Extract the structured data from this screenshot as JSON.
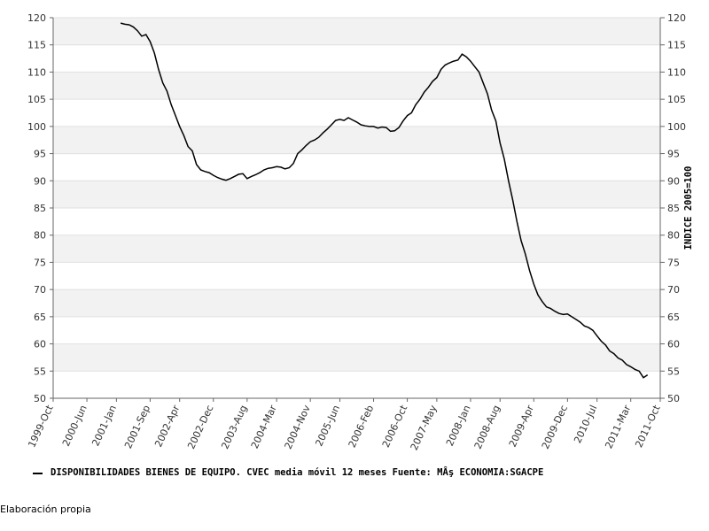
{
  "chart_data": {
    "type": "line",
    "y2_label": "INDICE 2005=100",
    "footnote": "Elaboración propia",
    "categories": [
      "1999-Oct",
      null,
      null,
      null,
      null,
      null,
      null,
      null,
      "2000-Jun",
      null,
      null,
      null,
      null,
      null,
      null,
      "2001-Jan",
      null,
      null,
      null,
      null,
      null,
      null,
      null,
      "2001-Sep",
      null,
      null,
      null,
      null,
      null,
      null,
      "2002-Apr",
      null,
      null,
      null,
      null,
      null,
      null,
      null,
      "2002-Dec",
      null,
      null,
      null,
      null,
      null,
      null,
      null,
      "2003-Aug",
      null,
      null,
      null,
      null,
      null,
      null,
      "2004-Mar",
      null,
      null,
      null,
      null,
      null,
      null,
      null,
      "2004-Nov",
      null,
      null,
      null,
      null,
      null,
      null,
      "2005-Jun",
      null,
      null,
      null,
      null,
      null,
      null,
      null,
      "2006-Feb",
      null,
      null,
      null,
      null,
      null,
      null,
      null,
      "2006-Oct",
      null,
      null,
      null,
      null,
      null,
      null,
      "2007-May",
      null,
      null,
      null,
      null,
      null,
      null,
      null,
      "2008-Jan",
      null,
      null,
      null,
      null,
      null,
      null,
      "2008-Aug",
      null,
      null,
      null,
      null,
      null,
      null,
      null,
      "2009-Apr",
      null,
      null,
      null,
      null,
      null,
      null,
      null,
      "2009-Dec",
      null,
      null,
      null,
      null,
      null,
      null,
      "2010-Jul",
      null,
      null,
      null,
      null,
      null,
      null,
      null,
      "2011-Mar",
      null,
      null,
      null,
      null,
      null,
      null,
      "2011-Oct"
    ],
    "series": [
      {
        "name": "DISPONIBILIDADES BIENES DE EQUIPO. CVEC media móvil 12 meses  Fuente: MÂş ECONOMIA:SGACPE",
        "color": "#000000",
        "values": [
          null,
          null,
          null,
          null,
          null,
          null,
          null,
          null,
          null,
          null,
          null,
          null,
          null,
          null,
          null,
          null,
          119,
          118.8,
          118.7,
          118.3,
          117.6,
          116.6,
          116.9,
          115.6,
          113.5,
          110.5,
          108,
          106.5,
          104,
          102,
          100,
          98.3,
          96.3,
          95.5,
          93,
          92,
          91.7,
          91.5,
          91,
          90.6,
          90.3,
          90.1,
          90.4,
          90.8,
          91.2,
          91.3,
          90.4,
          90.8,
          91.1,
          91.5,
          92,
          92.3,
          92.4,
          92.6,
          92.5,
          92.2,
          92.4,
          93.2,
          95,
          95.7,
          96.5,
          97.2,
          97.5,
          98,
          98.8,
          99.5,
          100.3,
          101.1,
          101.3,
          101.1,
          101.6,
          101.2,
          100.8,
          100.3,
          100.1,
          100,
          100,
          99.7,
          99.9,
          99.8,
          99.1,
          99.2,
          99.8,
          101,
          102,
          102.5,
          104,
          105,
          106.3,
          107.2,
          108.3,
          109,
          110.5,
          111.3,
          111.7,
          112,
          112.2,
          113.3,
          112.8,
          112,
          111,
          110,
          108,
          106,
          103,
          101,
          97,
          94,
          90,
          86.5,
          82.5,
          79,
          76.5,
          73.5,
          71,
          69,
          67.8,
          66.8,
          66.5,
          66,
          65.6,
          65.4,
          65.5,
          65,
          64.5,
          64,
          63.3,
          63,
          62.5,
          61.5,
          60.5,
          59.8,
          58.7,
          58.2,
          57.4,
          57,
          56.2,
          55.8,
          55.3,
          55,
          53.8,
          54.3,
          null,
          null,
          null
        ]
      }
    ],
    "ylim": [
      50,
      120
    ],
    "yticks": [
      50,
      55,
      60,
      65,
      70,
      75,
      80,
      85,
      90,
      95,
      100,
      105,
      110,
      115,
      120
    ],
    "y2lim": [
      50,
      120
    ],
    "y2ticks": [
      50,
      55,
      60,
      65,
      70,
      75,
      80,
      85,
      90,
      95,
      100,
      105,
      110,
      115,
      120
    ],
    "grid": true,
    "band_color": "#f2f2f2"
  }
}
